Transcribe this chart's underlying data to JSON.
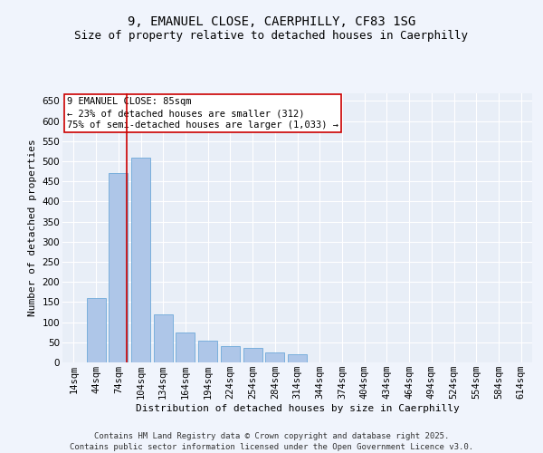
{
  "title1": "9, EMANUEL CLOSE, CAERPHILLY, CF83 1SG",
  "title2": "Size of property relative to detached houses in Caerphilly",
  "xlabel": "Distribution of detached houses by size in Caerphilly",
  "ylabel": "Number of detached properties",
  "categories": [
    "14sqm",
    "44sqm",
    "74sqm",
    "104sqm",
    "134sqm",
    "164sqm",
    "194sqm",
    "224sqm",
    "254sqm",
    "284sqm",
    "314sqm",
    "344sqm",
    "374sqm",
    "404sqm",
    "434sqm",
    "464sqm",
    "494sqm",
    "524sqm",
    "554sqm",
    "584sqm",
    "614sqm"
  ],
  "values": [
    0,
    160,
    470,
    510,
    120,
    75,
    55,
    40,
    35,
    25,
    20,
    1,
    0,
    0,
    0,
    0,
    0,
    0,
    0,
    1,
    0
  ],
  "bar_color": "#aec6e8",
  "bar_edge_color": "#5a9fd4",
  "annotation_box_text": "9 EMANUEL CLOSE: 85sqm\n← 23% of detached houses are smaller (312)\n75% of semi-detached houses are larger (1,033) →",
  "annotation_box_color": "#ffffff",
  "annotation_box_edge_color": "#cc0000",
  "ylim": [
    0,
    670
  ],
  "yticks": [
    0,
    50,
    100,
    150,
    200,
    250,
    300,
    350,
    400,
    450,
    500,
    550,
    600,
    650
  ],
  "background_color": "#e8eef7",
  "grid_color": "#ffffff",
  "footer_text": "Contains HM Land Registry data © Crown copyright and database right 2025.\nContains public sector information licensed under the Open Government Licence v3.0.",
  "title_fontsize": 10,
  "subtitle_fontsize": 9,
  "axis_label_fontsize": 8,
  "tick_fontsize": 7.5,
  "annotation_fontsize": 7.5,
  "footer_fontsize": 6.5,
  "fig_bg_color": "#f0f4fc"
}
